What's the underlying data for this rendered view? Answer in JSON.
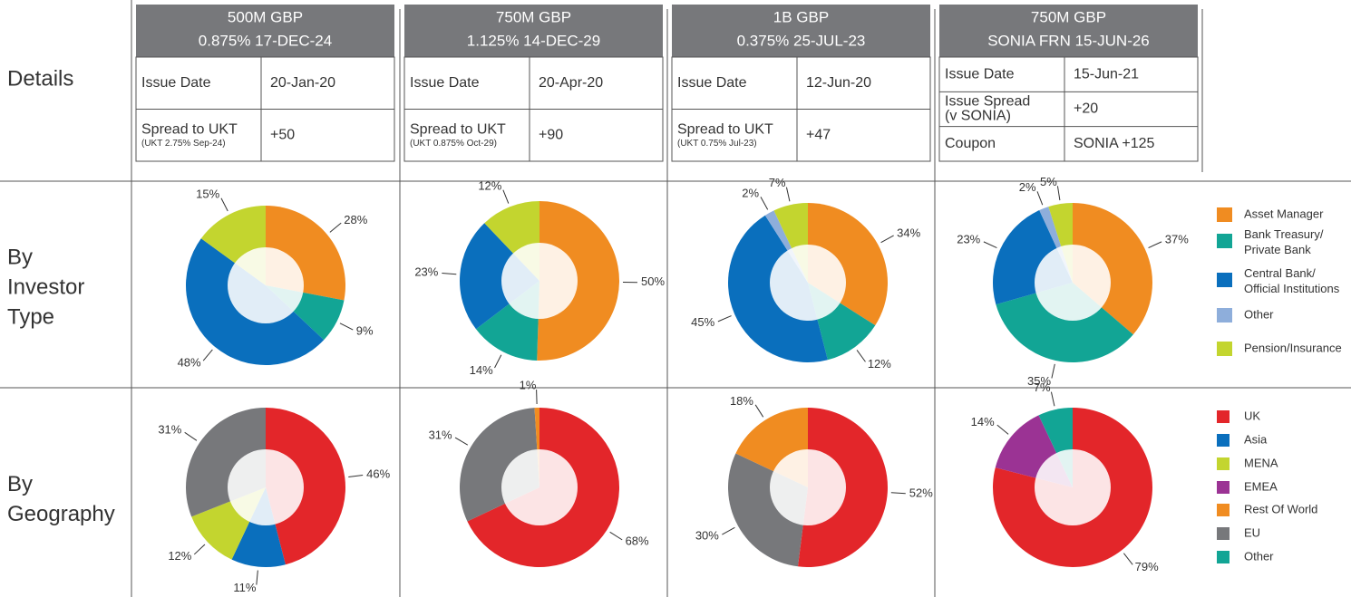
{
  "row_labels": [
    {
      "lines": [
        "Details"
      ]
    },
    {
      "lines": [
        "By",
        "Investor",
        "Type"
      ]
    },
    {
      "lines": [
        "By",
        "Geography"
      ]
    }
  ],
  "bonds": [
    {
      "title_lines": [
        "500M GBP",
        "0.875% 17-DEC-24"
      ],
      "details": [
        {
          "label_lines": [
            "Issue Date"
          ],
          "value": "20-Jan-20"
        },
        {
          "label_lines": [
            "Spread to UKT"
          ],
          "note": "(UKT 2.75% Sep-24)",
          "value": "+50"
        }
      ]
    },
    {
      "title_lines": [
        "750M GBP",
        "1.125% 14-DEC-29"
      ],
      "details": [
        {
          "label_lines": [
            "Issue Date"
          ],
          "value": "20-Apr-20"
        },
        {
          "label_lines": [
            "Spread to UKT"
          ],
          "note": "(UKT 0.875% Oct-29)",
          "value": "+90"
        }
      ]
    },
    {
      "title_lines": [
        "1B GBP",
        "0.375% 25-JUL-23"
      ],
      "details": [
        {
          "label_lines": [
            "Issue Date"
          ],
          "value": "12-Jun-20"
        },
        {
          "label_lines": [
            "Spread to UKT"
          ],
          "note": "(UKT 0.75% Jul-23)",
          "value": "+47"
        }
      ]
    },
    {
      "title_lines": [
        "750M GBP",
        "SONIA FRN 15-JUN-26"
      ],
      "details": [
        {
          "label_lines": [
            "Issue Date"
          ],
          "value": "15-Jun-21"
        },
        {
          "label_lines": [
            "Issue Spread",
            "(v SONIA)"
          ],
          "value": "+20"
        },
        {
          "label_lines": [
            "Coupon"
          ],
          "value": "SONIA +125"
        }
      ]
    }
  ],
  "legends": [
    {
      "items": [
        {
          "name": "Asset Manager",
          "color": "#f08c21"
        },
        {
          "name": "Bank Treasury/ Private Bank",
          "color": "#12a595"
        },
        {
          "name": "Central Bank/ Official Institutions",
          "color": "#0a6fbd"
        },
        {
          "name": "Other",
          "color": "#8eaedb"
        },
        {
          "name": "Pension/Insurance",
          "color": "#c3d52f"
        }
      ]
    },
    {
      "items": [
        {
          "name": "UK",
          "color": "#e3262a"
        },
        {
          "name": "Asia",
          "color": "#0a6fbd"
        },
        {
          "name": "MENA",
          "color": "#c3d52f"
        },
        {
          "name": "EMEA",
          "color": "#9b3394"
        },
        {
          "name": "Rest Of World",
          "color": "#f08c21"
        },
        {
          "name": "EU",
          "color": "#77787b"
        },
        {
          "name": "Other",
          "color": "#12a595"
        }
      ]
    }
  ],
  "chart_data": [
    {
      "type": "pie",
      "categories": [
        "Asset Manager",
        "Bank Treasury/ Private Bank",
        "Central Bank/ Official Institutions",
        "Pension/Insurance"
      ],
      "values": [
        28,
        9,
        48,
        15
      ],
      "value_labels": [
        "28%",
        "9%",
        "48%",
        "15%"
      ],
      "colors": [
        "#f08c21",
        "#12a595",
        "#0a6fbd",
        "#c3d52f"
      ]
    },
    {
      "type": "pie",
      "categories": [
        "Asset Manager",
        "Bank Treasury/ Private Bank",
        "Central Bank/ Official Institutions",
        "Pension/Insurance"
      ],
      "values": [
        50,
        14,
        23,
        12
      ],
      "value_labels": [
        "50%",
        "14%",
        "23%",
        "12%"
      ],
      "colors": [
        "#f08c21",
        "#12a595",
        "#0a6fbd",
        "#c3d52f"
      ]
    },
    {
      "type": "pie",
      "categories": [
        "Asset Manager",
        "Bank Treasury/ Private Bank",
        "Central Bank/ Official Institutions",
        "Other",
        "Pension/Insurance"
      ],
      "values": [
        34,
        12,
        45,
        2,
        7
      ],
      "value_labels": [
        "34%",
        "12%",
        "45%",
        "2%",
        "7%"
      ],
      "colors": [
        "#f08c21",
        "#12a595",
        "#0a6fbd",
        "#8eaedb",
        "#c3d52f"
      ]
    },
    {
      "type": "pie",
      "categories": [
        "Asset Manager",
        "Bank Treasury/ Private Bank",
        "Central Bank/ Official Institutions",
        "Other",
        "Pension/Insurance"
      ],
      "values": [
        37,
        35,
        23,
        2,
        5
      ],
      "value_labels": [
        "37%",
        "35%",
        "23%",
        "2%",
        "5%"
      ],
      "colors": [
        "#f08c21",
        "#12a595",
        "#0a6fbd",
        "#8eaedb",
        "#c3d52f"
      ]
    },
    {
      "type": "pie",
      "categories": [
        "UK",
        "Asia",
        "MENA",
        "EU"
      ],
      "values": [
        46,
        11,
        12,
        31
      ],
      "value_labels": [
        "46%",
        "11%",
        "12%",
        "31%"
      ],
      "colors": [
        "#e3262a",
        "#0a6fbd",
        "#c3d52f",
        "#77787b"
      ]
    },
    {
      "type": "pie",
      "categories": [
        "UK",
        "EU",
        "Rest Of World"
      ],
      "values": [
        68,
        31,
        1
      ],
      "value_labels": [
        "68%",
        "31%",
        "1%"
      ],
      "colors": [
        "#e3262a",
        "#77787b",
        "#f08c21"
      ]
    },
    {
      "type": "pie",
      "categories": [
        "UK",
        "EU",
        "Rest Of World"
      ],
      "values": [
        52,
        30,
        18
      ],
      "value_labels": [
        "52%",
        "30%",
        "18%"
      ],
      "colors": [
        "#e3262a",
        "#77787b",
        "#f08c21"
      ]
    },
    {
      "type": "pie",
      "categories": [
        "UK",
        "EMEA",
        "Other"
      ],
      "values": [
        79,
        14,
        7
      ],
      "value_labels": [
        "79%",
        "14%",
        "7%"
      ],
      "colors": [
        "#e3262a",
        "#9b3394",
        "#12a595"
      ]
    }
  ]
}
